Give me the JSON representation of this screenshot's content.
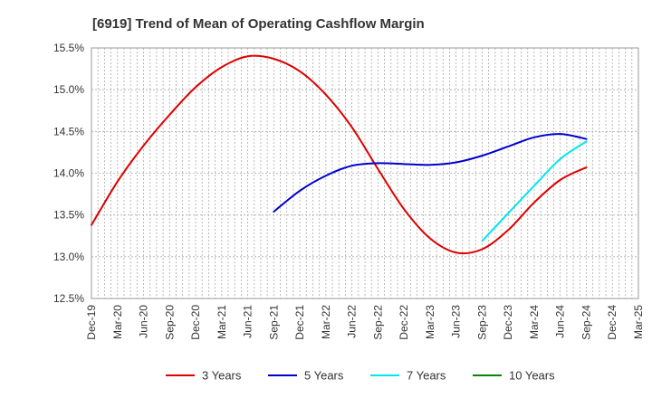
{
  "chart_data": {
    "type": "line",
    "title": "[6919]  Trend of Mean of Operating Cashflow Margin",
    "xlabel": "",
    "ylabel": "",
    "ylim": [
      12.5,
      15.5
    ],
    "yticks": [
      "12.5%",
      "13.0%",
      "13.5%",
      "14.0%",
      "14.5%",
      "15.0%",
      "15.5%"
    ],
    "ytick_values": [
      12.5,
      13.0,
      13.5,
      14.0,
      14.5,
      15.0,
      15.5
    ],
    "categories": [
      "Dec-19",
      "Mar-20",
      "Jun-20",
      "Sep-20",
      "Dec-20",
      "Mar-21",
      "Jun-21",
      "Sep-21",
      "Dec-21",
      "Mar-22",
      "Jun-22",
      "Sep-22",
      "Dec-22",
      "Mar-23",
      "Jun-23",
      "Sep-23",
      "Dec-23",
      "Mar-24",
      "Jun-24",
      "Sep-24",
      "Dec-24",
      "Mar-25"
    ],
    "grid": true,
    "legend_position": "bottom",
    "series": [
      {
        "name": "3 Years",
        "color": "#dd0000",
        "x": [
          "Dec-19",
          "Mar-20",
          "Jun-20",
          "Sep-20",
          "Dec-20",
          "Mar-21",
          "Jun-21",
          "Sep-21",
          "Dec-21",
          "Mar-22",
          "Jun-22",
          "Sep-22",
          "Dec-22",
          "Mar-23",
          "Jun-23",
          "Sep-23",
          "Dec-23",
          "Mar-24",
          "Jun-24",
          "Sep-24"
        ],
        "values": [
          13.38,
          13.9,
          14.33,
          14.7,
          15.03,
          15.27,
          15.4,
          15.37,
          15.22,
          14.94,
          14.55,
          14.05,
          13.57,
          13.22,
          13.05,
          13.09,
          13.32,
          13.65,
          13.92,
          14.07
        ]
      },
      {
        "name": "5 Years",
        "color": "#0000cc",
        "x": [
          "Sep-21",
          "Dec-21",
          "Mar-22",
          "Jun-22",
          "Sep-22",
          "Dec-22",
          "Mar-23",
          "Jun-23",
          "Sep-23",
          "Dec-23",
          "Mar-24",
          "Jun-24",
          "Sep-24"
        ],
        "values": [
          13.54,
          13.79,
          13.97,
          14.09,
          14.12,
          14.11,
          14.1,
          14.13,
          14.21,
          14.32,
          14.43,
          14.47,
          14.41
        ]
      },
      {
        "name": "7 Years",
        "color": "#00e5ee",
        "x": [
          "Jun-23",
          "Sep-23",
          "Dec-23",
          "Mar-24",
          "Jun-24",
          "Sep-24"
        ],
        "values": [
          null,
          13.19,
          13.52,
          13.85,
          14.17,
          14.38
        ]
      },
      {
        "name": "10 Years",
        "color": "#008800",
        "x": [],
        "values": []
      }
    ]
  }
}
